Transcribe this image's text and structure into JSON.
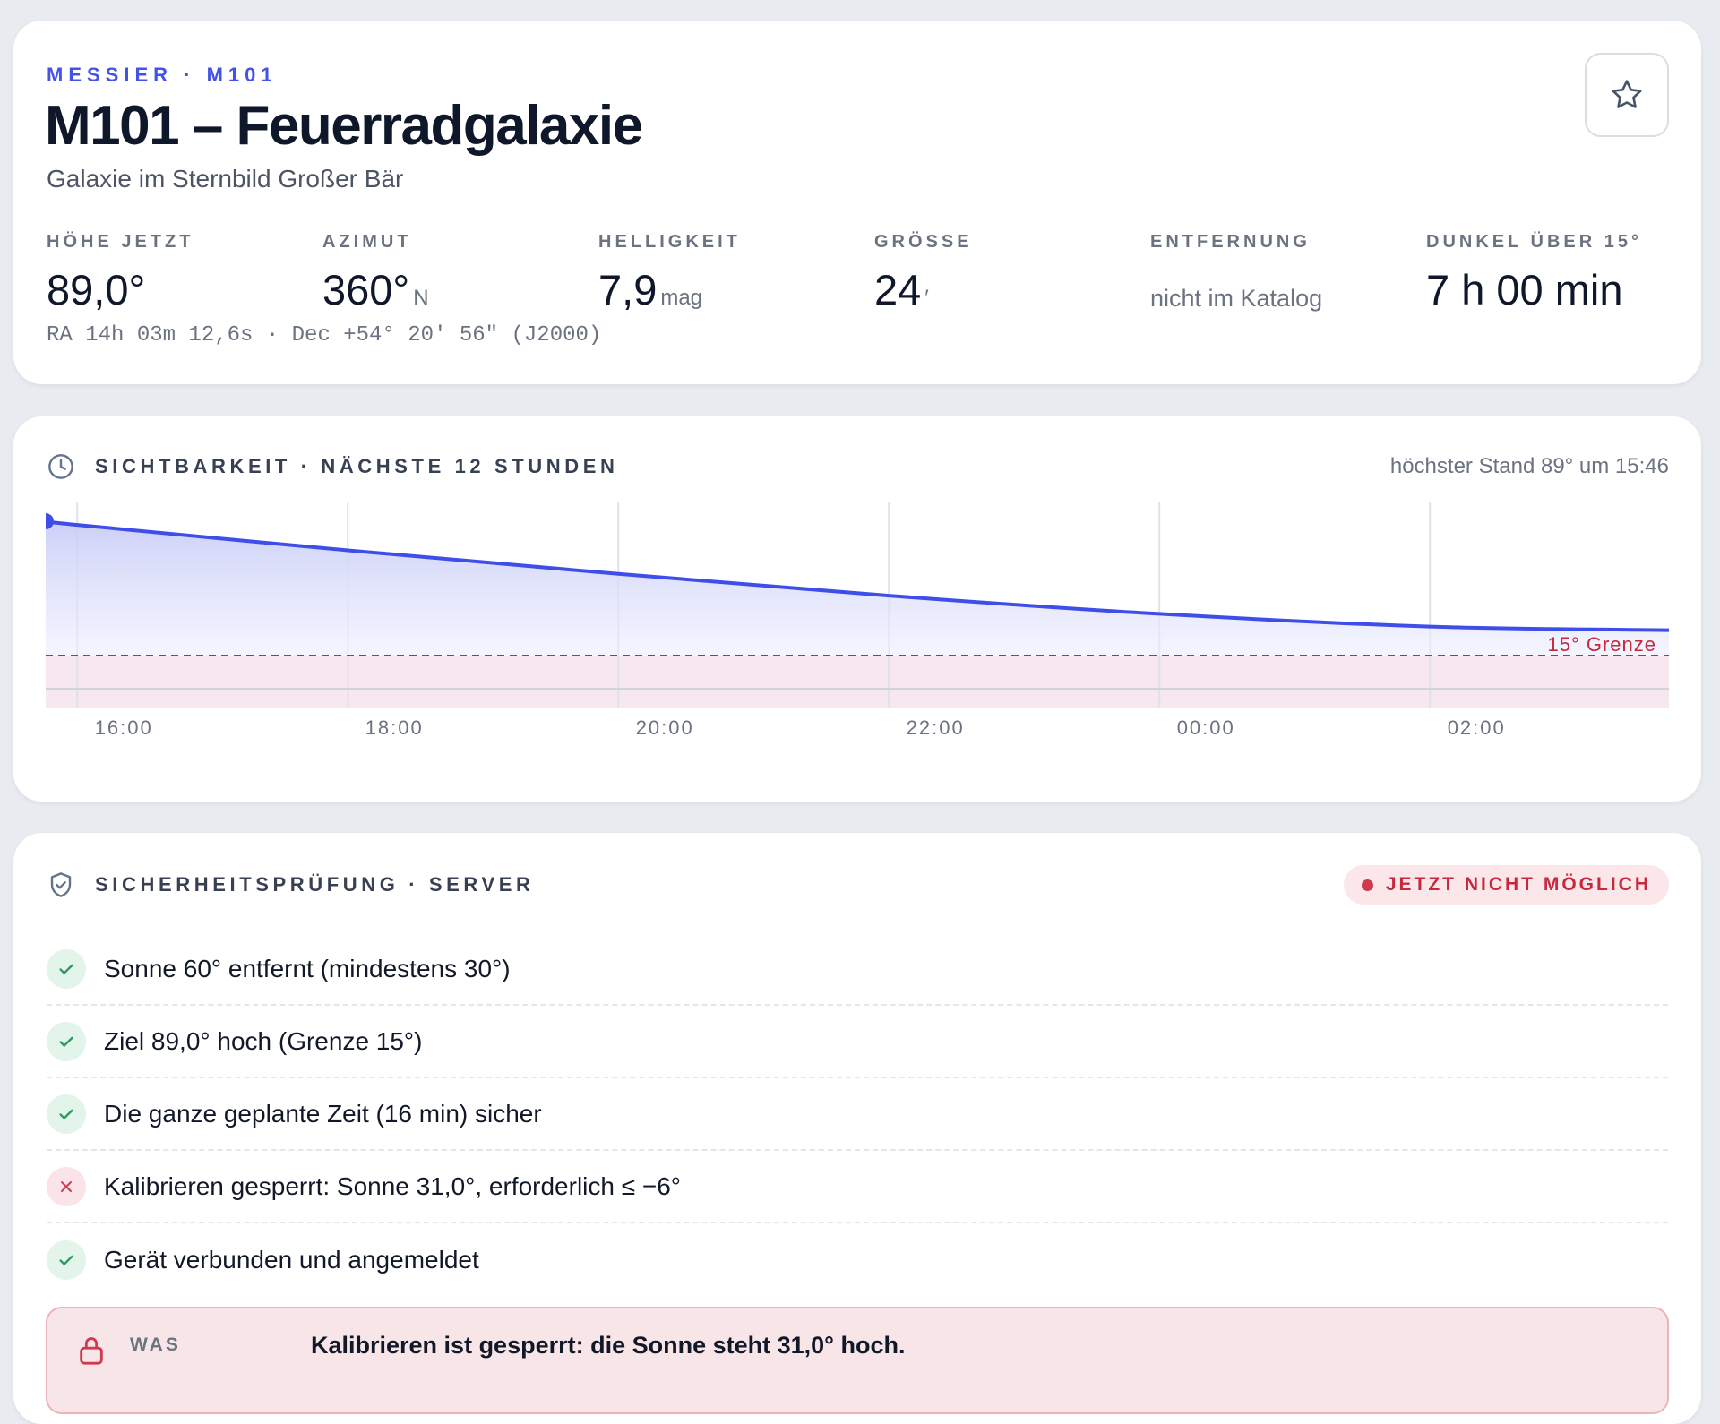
{
  "header": {
    "eyebrow": "MESSIER · M101",
    "title": "M101 – Feuerradgalaxie",
    "subtitle": "Galaxie im Sternbild Großer Bär",
    "favorite_icon": "star-icon",
    "stats": [
      {
        "label": "HÖHE JETZT",
        "value": "89,0°",
        "unit": ""
      },
      {
        "label": "AZIMUT",
        "value": "360°",
        "unit": "N"
      },
      {
        "label": "HELLIGKEIT",
        "value": "7,9",
        "unit": "mag"
      },
      {
        "label": "GRÖSSE",
        "value": "24",
        "unit": "′"
      },
      {
        "label": "ENTFERNUNG",
        "value": "nicht im Katalog",
        "unit": ""
      },
      {
        "label": "DUNKEL ÜBER 15°",
        "value": "7 h 00 min",
        "unit": ""
      }
    ],
    "coordinates": "RA 14h 03m 12,6s · Dec +54° 20′ 56″ (J2000)"
  },
  "visibility": {
    "icon": "clock-icon",
    "title": "SICHTBARKEIT · NÄCHSTE 12 STUNDEN",
    "peak_note": "höchster Stand 89° um 15:46",
    "limit_label": "15° Grenze",
    "colors": {
      "line": "#3f4ee8",
      "fill": "#c9cdf7",
      "limit": "#c6283e",
      "below": "#f6e8ee"
    }
  },
  "chart_data": {
    "type": "area",
    "title": "",
    "xlabel": "",
    "ylabel": "",
    "tick_labels": [
      "16:00",
      "18:00",
      "20:00",
      "22:00",
      "00:00",
      "02:00"
    ],
    "x": [
      "15:46",
      "16:00",
      "18:00",
      "20:00",
      "22:00",
      "00:00",
      "02:00",
      "03:46"
    ],
    "series": [
      {
        "values": [
          89,
          87,
          73,
          60,
          48,
          38,
          31,
          29
        ]
      }
    ],
    "limit": 15,
    "ylim": [
      0,
      90
    ],
    "grid": true
  },
  "safety": {
    "icon": "shield-check-icon",
    "title": "SICHERHEITSPRÜFUNG · SERVER",
    "status": "JETZT NICHT MÖGLICH",
    "checks": [
      {
        "ok": true,
        "text": "Sonne 60° entfernt (mindestens 30°)"
      },
      {
        "ok": true,
        "text": "Ziel 89,0° hoch (Grenze 15°)"
      },
      {
        "ok": true,
        "text": "Die ganze geplante Zeit (16 min) sicher"
      },
      {
        "ok": false,
        "text": "Kalibrieren gesperrt: Sonne 31,0°, erforderlich ≤ −6°"
      },
      {
        "ok": true,
        "text": "Gerät verbunden und angemeldet"
      }
    ],
    "alert": {
      "icon": "lock-icon",
      "label": "WAS",
      "text": "Kalibrieren ist gesperrt: die Sonne steht 31,0° hoch."
    }
  }
}
